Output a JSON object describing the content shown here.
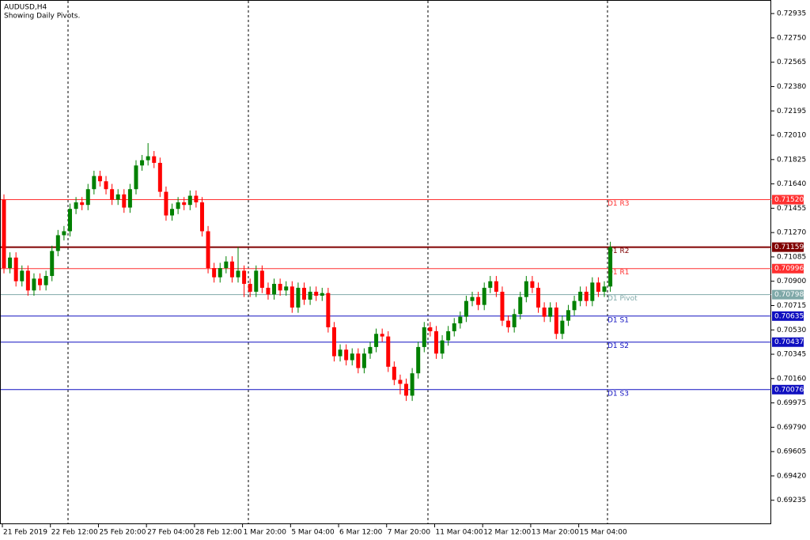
{
  "chart_data": {
    "type": "candlestick",
    "title": "AUDUSD,H4",
    "subtitle": "Showing Daily Pivots.",
    "up_color": "#008000",
    "down_color": "#ff0000",
    "categories": [
      "21 Feb 2019",
      null,
      null,
      null,
      null,
      null,
      null,
      null,
      "22 Feb 12:00",
      null,
      null,
      null,
      null,
      null,
      null,
      null,
      "25 Feb 20:00",
      null,
      null,
      null,
      null,
      null,
      null,
      null,
      "27 Feb 04:00",
      null,
      null,
      null,
      null,
      null,
      null,
      null,
      "28 Feb 12:00",
      null,
      null,
      null,
      null,
      null,
      null,
      null,
      "1 Mar 20:00",
      null,
      null,
      null,
      null,
      null,
      null,
      null,
      "5 Mar 04:00",
      null,
      null,
      null,
      null,
      null,
      null,
      null,
      "6 Mar 12:00",
      null,
      null,
      null,
      null,
      null,
      null,
      null,
      "7 Mar 20:00",
      null,
      null,
      null,
      null,
      null,
      null,
      null,
      "11 Mar 04:00",
      null,
      null,
      null,
      null,
      null,
      null,
      null,
      "12 Mar 12:00",
      null,
      null,
      null,
      null,
      null,
      null,
      null,
      "13 Mar 20:00",
      null,
      null,
      null,
      null,
      null,
      null,
      null,
      "15 Mar 04:00",
      null,
      null,
      null,
      null,
      null
    ],
    "open": [
      0.7152,
      0.71,
      0.7108,
      0.709,
      0.7098,
      0.7083,
      0.7092,
      0.7087,
      0.7094,
      0.7113,
      0.7125,
      0.7128,
      0.7145,
      0.715,
      0.7148,
      0.716,
      0.717,
      0.7166,
      0.716,
      0.7152,
      0.7156,
      0.7146,
      0.716,
      0.7178,
      0.7182,
      0.7185,
      0.718,
      0.7158,
      0.714,
      0.7145,
      0.715,
      0.7148,
      0.7155,
      0.715,
      0.7128,
      0.71,
      0.7093,
      0.71,
      0.7105,
      0.7093,
      0.7098,
      0.7088,
      0.7082,
      0.7098,
      0.7085,
      0.708,
      0.7088,
      0.7083,
      0.7086,
      0.707,
      0.7085,
      0.7076,
      0.7082,
      0.7079,
      0.7081,
      0.7055,
      0.7033,
      0.7038,
      0.703,
      0.7035,
      0.7024,
      0.7035,
      0.704,
      0.705,
      0.7048,
      0.7025,
      0.7015,
      0.7012,
      0.7003,
      0.702,
      0.704,
      0.7055,
      0.7052,
      0.7035,
      0.7045,
      0.7052,
      0.7058,
      0.7063,
      0.7075,
      0.7078,
      0.7072,
      0.7085,
      0.709,
      0.7082,
      0.706,
      0.7055,
      0.7065,
      0.7078,
      0.709,
      0.7085,
      0.707,
      0.7063,
      0.707,
      0.705,
      0.706,
      0.7068,
      0.7075,
      0.7082,
      0.7075,
      0.7089,
      0.7082,
      0.7086
    ],
    "high": [
      0.7156,
      0.7112,
      0.7112,
      0.7102,
      0.7102,
      0.7096,
      0.7096,
      0.7098,
      0.7117,
      0.7129,
      0.7132,
      0.7149,
      0.7154,
      0.7154,
      0.7164,
      0.7174,
      0.7174,
      0.717,
      0.7164,
      0.716,
      0.716,
      0.7164,
      0.7182,
      0.7186,
      0.7195,
      0.7189,
      0.7184,
      0.7162,
      0.7149,
      0.7154,
      0.7154,
      0.7159,
      0.7159,
      0.7154,
      0.7132,
      0.7104,
      0.7104,
      0.7109,
      0.7109,
      0.7116,
      0.7102,
      0.7092,
      0.7102,
      0.7102,
      0.7089,
      0.7092,
      0.7092,
      0.709,
      0.709,
      0.7089,
      0.7089,
      0.7086,
      0.7086,
      0.7085,
      0.7085,
      0.7059,
      0.7042,
      0.7042,
      0.7039,
      0.7039,
      0.7039,
      0.7044,
      0.7054,
      0.7054,
      0.7052,
      0.7029,
      0.7019,
      0.7016,
      0.7024,
      0.7044,
      0.7059,
      0.7059,
      0.7056,
      0.7049,
      0.7056,
      0.7062,
      0.7067,
      0.7079,
      0.7082,
      0.7082,
      0.7089,
      0.7094,
      0.7094,
      0.7086,
      0.7064,
      0.7069,
      0.7082,
      0.7094,
      0.7094,
      0.7089,
      0.7074,
      0.7074,
      0.7074,
      0.7064,
      0.7072,
      0.7079,
      0.7086,
      0.7086,
      0.7093,
      0.7093,
      0.709,
      0.712
    ],
    "low": [
      0.7096,
      0.7096,
      0.7086,
      0.7086,
      0.7079,
      0.7079,
      0.7083,
      0.7083,
      0.709,
      0.7109,
      0.7121,
      0.7124,
      0.7141,
      0.7144,
      0.7144,
      0.7156,
      0.7162,
      0.7156,
      0.7148,
      0.7148,
      0.7142,
      0.7142,
      0.7156,
      0.7174,
      0.7178,
      0.7176,
      0.7154,
      0.7136,
      0.7136,
      0.7141,
      0.7144,
      0.7144,
      0.7146,
      0.7124,
      0.7096,
      0.7089,
      0.7089,
      0.7096,
      0.7089,
      0.7089,
      0.7078,
      0.7078,
      0.7078,
      0.7081,
      0.7076,
      0.7076,
      0.7079,
      0.7079,
      0.7066,
      0.7066,
      0.7072,
      0.7072,
      0.7075,
      0.7075,
      0.7051,
      0.7029,
      0.7029,
      0.7026,
      0.7026,
      0.702,
      0.702,
      0.7031,
      0.7036,
      0.7044,
      0.7021,
      0.7011,
      0.7004,
      0.6999,
      0.6999,
      0.7016,
      0.7036,
      0.7048,
      0.7031,
      0.7031,
      0.7041,
      0.7048,
      0.7054,
      0.7059,
      0.7071,
      0.7068,
      0.7068,
      0.7081,
      0.7078,
      0.7056,
      0.7051,
      0.7051,
      0.7061,
      0.7074,
      0.7081,
      0.7066,
      0.7059,
      0.7059,
      0.7046,
      0.7046,
      0.7056,
      0.7064,
      0.7071,
      0.7071,
      0.7071,
      0.7078,
      0.7078,
      0.7082
    ],
    "close": [
      0.71,
      0.7108,
      0.709,
      0.7098,
      0.7083,
      0.7092,
      0.7087,
      0.7094,
      0.7113,
      0.7125,
      0.7128,
      0.7145,
      0.715,
      0.7148,
      0.716,
      0.717,
      0.7166,
      0.716,
      0.7152,
      0.7156,
      0.7146,
      0.716,
      0.7178,
      0.7182,
      0.7185,
      0.718,
      0.7158,
      0.714,
      0.7145,
      0.715,
      0.7148,
      0.7155,
      0.715,
      0.7128,
      0.71,
      0.7093,
      0.71,
      0.7105,
      0.7093,
      0.7098,
      0.7088,
      0.7082,
      0.7098,
      0.7085,
      0.708,
      0.7088,
      0.7083,
      0.7086,
      0.707,
      0.7085,
      0.7076,
      0.7082,
      0.7079,
      0.7081,
      0.7055,
      0.7033,
      0.7038,
      0.703,
      0.7035,
      0.7024,
      0.7035,
      0.704,
      0.705,
      0.7048,
      0.7025,
      0.7015,
      0.7012,
      0.7003,
      0.702,
      0.704,
      0.7055,
      0.7052,
      0.7035,
      0.7045,
      0.7052,
      0.7058,
      0.7063,
      0.7075,
      0.7078,
      0.7072,
      0.7085,
      0.709,
      0.7082,
      0.706,
      0.7055,
      0.7065,
      0.7078,
      0.709,
      0.7085,
      0.707,
      0.7063,
      0.707,
      0.705,
      0.706,
      0.7068,
      0.7075,
      0.7082,
      0.7075,
      0.7089,
      0.7082,
      0.7086,
      0.7116
    ],
    "ylim": [
      0.69053,
      0.73038
    ],
    "yticks": [
      0.72935,
      {
        "value": 0.7275,
        "label": "0.72750"
      },
      0.72565,
      {
        "value": 0.7238,
        "label": "0.72380"
      },
      0.72195,
      {
        "value": 0.7201,
        "label": "0.72010"
      },
      0.71825,
      {
        "value": 0.7164,
        "label": "0.71640"
      },
      0.71455,
      {
        "value": 0.7127,
        "label": "0.71270"
      },
      0.71085,
      {
        "value": 0.709,
        "label": "0.70900"
      },
      0.70715,
      {
        "value": 0.7053,
        "label": "0.70530"
      },
      0.70345,
      {
        "value": 0.7016,
        "label": "0.70160"
      },
      0.69975,
      {
        "value": 0.6979,
        "label": "0.69790"
      },
      0.69605,
      {
        "value": 0.6942,
        "label": "0.69420"
      },
      0.69235
    ],
    "levels": [
      {
        "name": "D1 R3",
        "value": 0.7152,
        "label": "0.71520",
        "color": "#ff3030"
      },
      {
        "name": "D1 R2",
        "value": 0.71159,
        "label": "0.71159",
        "color": "#800000"
      },
      {
        "name": "D1 R1",
        "value": 0.70996,
        "label": "0.70996",
        "color": "#ff3030"
      },
      {
        "name": "D1 Pivot",
        "value": 0.70798,
        "label": "0.70798",
        "color": "#7fa8a8"
      },
      {
        "name": "D1 S1",
        "value": 0.70635,
        "label": "0.70635",
        "color": "#1010c0"
      },
      {
        "name": "D1 S2",
        "value": 0.70437,
        "label": "0.70437",
        "color": "#1010c0"
      },
      {
        "name": "D1 S3",
        "value": 0.70076,
        "label": "0.70076",
        "color": "#1010c0"
      }
    ]
  }
}
